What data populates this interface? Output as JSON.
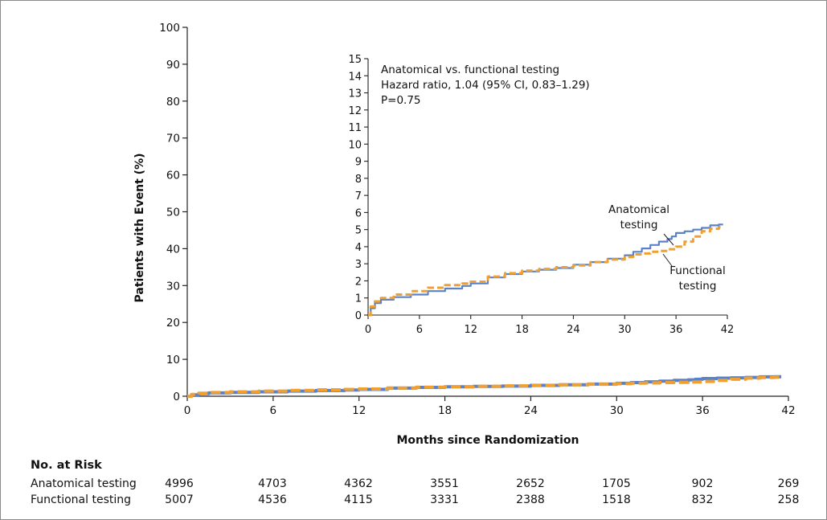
{
  "chart_data": {
    "type": "line",
    "ylabel": "Patients with Event (%)",
    "xlabel": "Months since Randomization",
    "xlim": [
      0,
      42
    ],
    "ylim": [
      0,
      100
    ],
    "xticks": [
      "0",
      "6",
      "12",
      "18",
      "24",
      "30",
      "36",
      "42"
    ],
    "yticks": [
      "0",
      "10",
      "20",
      "30",
      "40",
      "50",
      "60",
      "70",
      "80",
      "90",
      "100"
    ],
    "series": [
      {
        "name": "Anatomical testing",
        "color": "#5b82c8",
        "style": "solid step",
        "x": [
          0,
          0.3,
          0.8,
          1.5,
          3,
          5,
          7,
          9,
          11,
          12,
          14,
          16,
          18,
          20,
          22,
          24,
          26,
          28,
          30,
          31,
          32,
          33,
          34,
          35,
          35.5,
          36,
          37,
          38,
          39,
          40,
          41
        ],
        "y": [
          0,
          0.4,
          0.7,
          0.9,
          1.05,
          1.2,
          1.4,
          1.55,
          1.7,
          1.85,
          2.2,
          2.4,
          2.55,
          2.65,
          2.75,
          2.95,
          3.1,
          3.3,
          3.5,
          3.7,
          3.9,
          4.1,
          4.3,
          4.45,
          4.6,
          4.8,
          4.9,
          5.0,
          5.1,
          5.25,
          5.3
        ]
      },
      {
        "name": "Functional testing",
        "color": "#f0a030",
        "style": "dashed step",
        "x": [
          0,
          0.3,
          0.8,
          1.5,
          3,
          5,
          7,
          9,
          11,
          12,
          14,
          16,
          18,
          20,
          22,
          24,
          26,
          28,
          30,
          31,
          32,
          33,
          34,
          35,
          36,
          37,
          38,
          39,
          40,
          41
        ],
        "y": [
          0,
          0.5,
          0.8,
          1.0,
          1.2,
          1.4,
          1.6,
          1.75,
          1.85,
          1.95,
          2.25,
          2.45,
          2.6,
          2.7,
          2.8,
          2.9,
          3.1,
          3.25,
          3.4,
          3.55,
          3.6,
          3.7,
          3.75,
          3.85,
          4.0,
          4.3,
          4.6,
          4.9,
          5.05,
          5.15
        ]
      }
    ],
    "inset": {
      "ylim": [
        0,
        15
      ],
      "xlim": [
        0,
        42
      ],
      "yticks": [
        "0",
        "1",
        "2",
        "3",
        "4",
        "5",
        "6",
        "7",
        "8",
        "9",
        "10",
        "11",
        "12",
        "13",
        "14",
        "15"
      ],
      "xticks": [
        "0",
        "6",
        "12",
        "18",
        "24",
        "30",
        "36",
        "42"
      ],
      "annotation": [
        "Anatomical vs. functional testing",
        "Hazard ratio, 1.04 (95% CI, 0.83–1.29)",
        "P=0.75"
      ],
      "labels": {
        "anatomical": [
          "Anatomical",
          "testing"
        ],
        "functional": [
          "Functional",
          "testing"
        ]
      }
    },
    "risk_table": {
      "title": "No. at Risk",
      "rows": [
        {
          "label": "Anatomical testing",
          "values": [
            "4996",
            "4703",
            "4362",
            "3551",
            "2652",
            "1705",
            "902",
            "269"
          ]
        },
        {
          "label": "Functional testing",
          "values": [
            "5007",
            "4536",
            "4115",
            "3331",
            "2388",
            "1518",
            "832",
            "258"
          ]
        }
      ]
    }
  }
}
